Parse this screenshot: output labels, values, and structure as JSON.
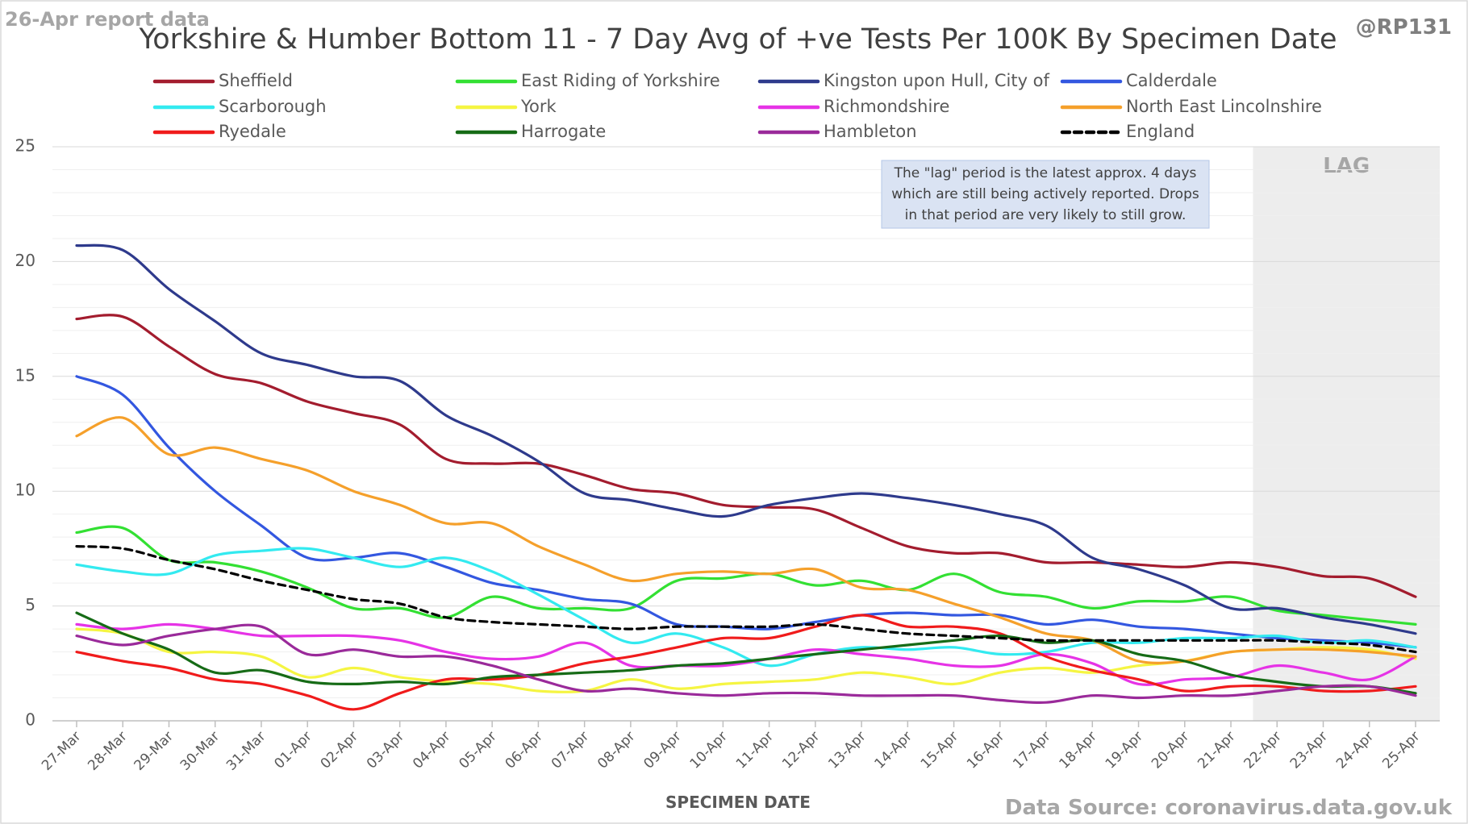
{
  "chart_data": {
    "type": "line",
    "title": "Yorkshire & Humber Bottom 11 - 7 Day Avg of +ve Tests Per 100K By Specimen Date",
    "report_label": "26-Apr report data",
    "handle": "@RP131",
    "source": "Data Source: coronavirus.data.gov.uk",
    "xlabel": "SPECIMEN DATE",
    "ylabel": "",
    "ylim": [
      0,
      25
    ],
    "yticks": [
      "0",
      "5",
      "10",
      "15",
      "20",
      "25"
    ],
    "grid": true,
    "legend_position": "top",
    "lag_label": "LAG",
    "lag_start": "22-Apr",
    "note": [
      "The \"lag\" period is the latest approx. 4 days",
      "which are still being actively reported. Drops",
      "in that period are very likely to still grow."
    ],
    "x": [
      "27-Mar",
      "28-Mar",
      "29-Mar",
      "30-Mar",
      "31-Mar",
      "01-Apr",
      "02-Apr",
      "03-Apr",
      "04-Apr",
      "05-Apr",
      "06-Apr",
      "07-Apr",
      "08-Apr",
      "09-Apr",
      "10-Apr",
      "11-Apr",
      "12-Apr",
      "13-Apr",
      "14-Apr",
      "15-Apr",
      "16-Apr",
      "17-Apr",
      "18-Apr",
      "19-Apr",
      "20-Apr",
      "21-Apr",
      "22-Apr",
      "23-Apr",
      "24-Apr",
      "25-Apr"
    ],
    "series": [
      {
        "name": "Sheffield",
        "color": "#a31c2e",
        "dashed": false,
        "values": [
          17.5,
          17.6,
          16.3,
          15.1,
          14.7,
          13.9,
          13.4,
          12.9,
          11.4,
          11.2,
          11.2,
          10.7,
          10.1,
          9.9,
          9.4,
          9.3,
          9.2,
          8.4,
          7.6,
          7.3,
          7.3,
          6.9,
          6.9,
          6.8,
          6.7,
          6.9,
          6.7,
          6.3,
          6.2,
          5.4
        ]
      },
      {
        "name": "East Riding of Yorkshire",
        "color": "#33e033",
        "dashed": false,
        "values": [
          8.2,
          8.4,
          7.0,
          6.9,
          6.5,
          5.8,
          4.9,
          4.9,
          4.5,
          5.4,
          4.9,
          4.9,
          4.9,
          6.1,
          6.2,
          6.4,
          5.9,
          6.1,
          5.7,
          6.4,
          5.6,
          5.4,
          4.9,
          5.2,
          5.2,
          5.4,
          4.8,
          4.6,
          4.4,
          4.2
        ]
      },
      {
        "name": "Kingston upon Hull, City of",
        "color": "#2e3a8c",
        "dashed": false,
        "values": [
          20.7,
          20.5,
          18.8,
          17.4,
          16.0,
          15.5,
          15.0,
          14.8,
          13.3,
          12.4,
          11.3,
          9.9,
          9.6,
          9.2,
          8.9,
          9.4,
          9.7,
          9.9,
          9.7,
          9.4,
          9.0,
          8.5,
          7.1,
          6.6,
          5.9,
          4.9,
          4.9,
          4.5,
          4.2,
          3.8
        ]
      },
      {
        "name": "Calderdale",
        "color": "#3357e0",
        "dashed": false,
        "values": [
          15.0,
          14.2,
          11.9,
          10.0,
          8.5,
          7.1,
          7.1,
          7.3,
          6.7,
          6.0,
          5.7,
          5.3,
          5.1,
          4.2,
          4.1,
          4.0,
          4.3,
          4.6,
          4.7,
          4.6,
          4.6,
          4.2,
          4.4,
          4.1,
          4.0,
          3.8,
          3.6,
          3.5,
          3.4,
          3.2
        ]
      },
      {
        "name": "Scarborough",
        "color": "#33eaf0",
        "dashed": false,
        "values": [
          6.8,
          6.5,
          6.4,
          7.2,
          7.4,
          7.5,
          7.1,
          6.7,
          7.1,
          6.5,
          5.5,
          4.4,
          3.4,
          3.8,
          3.2,
          2.4,
          2.9,
          3.2,
          3.1,
          3.2,
          2.9,
          3.0,
          3.4,
          3.4,
          3.6,
          3.6,
          3.7,
          3.4,
          3.5,
          3.2
        ]
      },
      {
        "name": "York",
        "color": "#f5f542",
        "dashed": false,
        "values": [
          4.0,
          3.8,
          3.0,
          3.0,
          2.8,
          1.9,
          2.3,
          1.9,
          1.7,
          1.6,
          1.3,
          1.3,
          1.8,
          1.4,
          1.6,
          1.7,
          1.8,
          2.1,
          1.9,
          1.6,
          2.1,
          2.3,
          2.1,
          2.4,
          2.6,
          3.0,
          3.1,
          3.2,
          3.1,
          2.7
        ]
      },
      {
        "name": "Richmondshire",
        "color": "#e633e6",
        "dashed": false,
        "values": [
          4.2,
          4.0,
          4.2,
          4.0,
          3.7,
          3.7,
          3.7,
          3.5,
          3.0,
          2.7,
          2.8,
          3.4,
          2.4,
          2.4,
          2.4,
          2.7,
          3.1,
          2.9,
          2.7,
          2.4,
          2.4,
          2.9,
          2.5,
          1.6,
          1.8,
          1.9,
          2.4,
          2.1,
          1.8,
          2.8
        ]
      },
      {
        "name": "North East Lincolnshire",
        "color": "#f5a02b",
        "dashed": false,
        "values": [
          12.4,
          13.2,
          11.6,
          11.9,
          11.4,
          10.9,
          10.0,
          9.4,
          8.6,
          8.6,
          7.6,
          6.8,
          6.1,
          6.4,
          6.5,
          6.4,
          6.6,
          5.8,
          5.7,
          5.1,
          4.5,
          3.8,
          3.5,
          2.6,
          2.6,
          3.0,
          3.1,
          3.1,
          3.0,
          2.8
        ]
      },
      {
        "name": "Ryedale",
        "color": "#f01b1b",
        "dashed": false,
        "values": [
          3.0,
          2.6,
          2.3,
          1.8,
          1.6,
          1.1,
          0.5,
          1.2,
          1.8,
          1.8,
          2.0,
          2.5,
          2.8,
          3.2,
          3.6,
          3.6,
          4.1,
          4.6,
          4.1,
          4.1,
          3.8,
          2.8,
          2.2,
          1.8,
          1.3,
          1.5,
          1.5,
          1.3,
          1.3,
          1.5
        ]
      },
      {
        "name": "Harrogate",
        "color": "#166b16",
        "dashed": false,
        "values": [
          4.7,
          3.8,
          3.1,
          2.1,
          2.2,
          1.7,
          1.6,
          1.7,
          1.6,
          1.9,
          2.0,
          2.1,
          2.2,
          2.4,
          2.5,
          2.7,
          2.9,
          3.1,
          3.3,
          3.5,
          3.7,
          3.4,
          3.5,
          2.9,
          2.6,
          2.0,
          1.7,
          1.5,
          1.5,
          1.2
        ]
      },
      {
        "name": "Hambleton",
        "color": "#9a2a9a",
        "dashed": false,
        "values": [
          3.7,
          3.3,
          3.7,
          4.0,
          4.1,
          2.9,
          3.1,
          2.8,
          2.8,
          2.4,
          1.8,
          1.3,
          1.4,
          1.2,
          1.1,
          1.2,
          1.2,
          1.1,
          1.1,
          1.1,
          0.9,
          0.8,
          1.1,
          1.0,
          1.1,
          1.1,
          1.3,
          1.5,
          1.5,
          1.1
        ]
      },
      {
        "name": "England",
        "color": "#000000",
        "dashed": true,
        "values": [
          7.6,
          7.5,
          7.0,
          6.6,
          6.1,
          5.7,
          5.3,
          5.1,
          4.5,
          4.3,
          4.2,
          4.1,
          4.0,
          4.1,
          4.1,
          4.1,
          4.2,
          4.0,
          3.8,
          3.7,
          3.6,
          3.5,
          3.5,
          3.5,
          3.5,
          3.5,
          3.5,
          3.4,
          3.3,
          3.0
        ]
      }
    ]
  }
}
